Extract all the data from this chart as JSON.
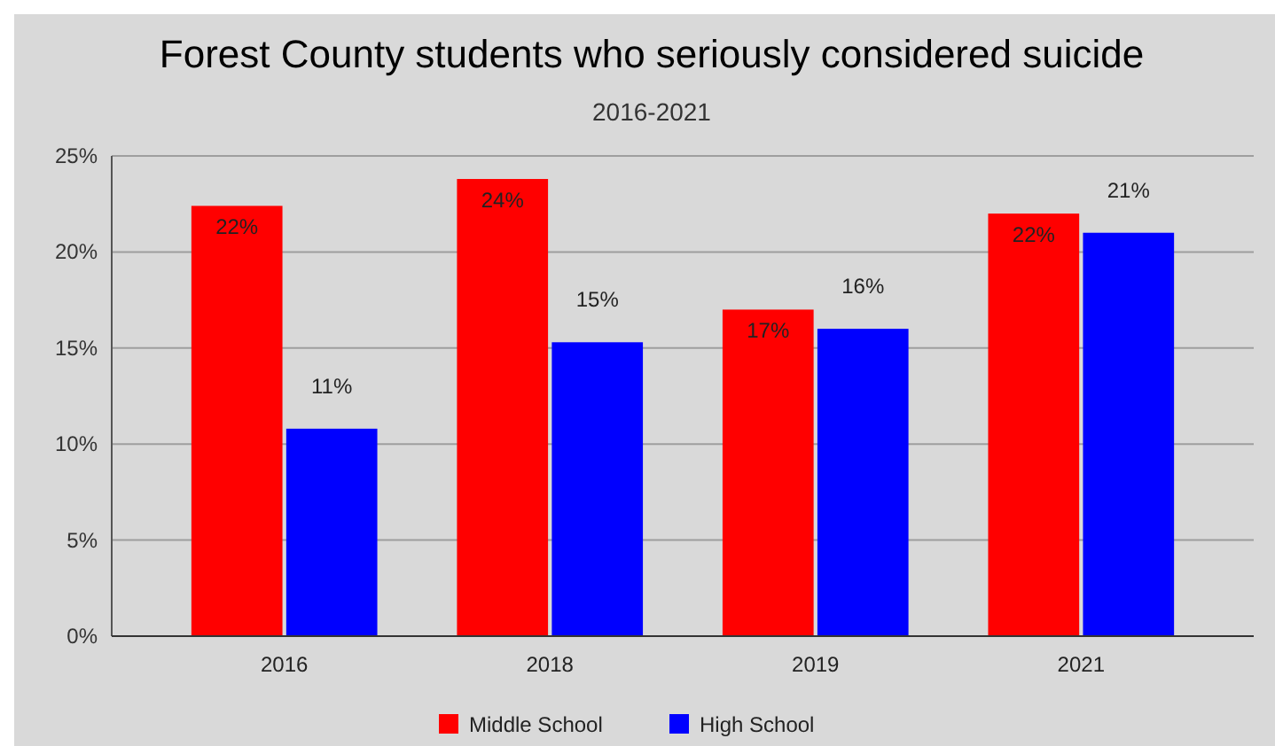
{
  "chart_data": {
    "type": "bar",
    "title": "Forest County students who seriously considered suicide",
    "subtitle": "2016-2021",
    "categories": [
      "2016",
      "2018",
      "2019",
      "2021"
    ],
    "series": [
      {
        "name": "Middle School",
        "color": "#ff0000",
        "values": [
          22.4,
          23.8,
          17,
          22
        ],
        "value_labels": [
          "22%",
          "24%",
          "17%",
          "22%"
        ]
      },
      {
        "name": "High School",
        "color": "#0000ff",
        "values": [
          10.8,
          15.3,
          16,
          21
        ],
        "value_labels": [
          "11%",
          "15%",
          "16%",
          "21%"
        ]
      }
    ],
    "ylim": [
      0,
      25
    ],
    "yticks": [
      {
        "value": 0,
        "label": "0%"
      },
      {
        "value": 5,
        "label": "5%"
      },
      {
        "value": 10,
        "label": "10%"
      },
      {
        "value": 15,
        "label": "15%"
      },
      {
        "value": 20,
        "label": "20%"
      },
      {
        "value": 25,
        "label": "25%"
      }
    ],
    "grid": "y",
    "legend": "bottom"
  }
}
